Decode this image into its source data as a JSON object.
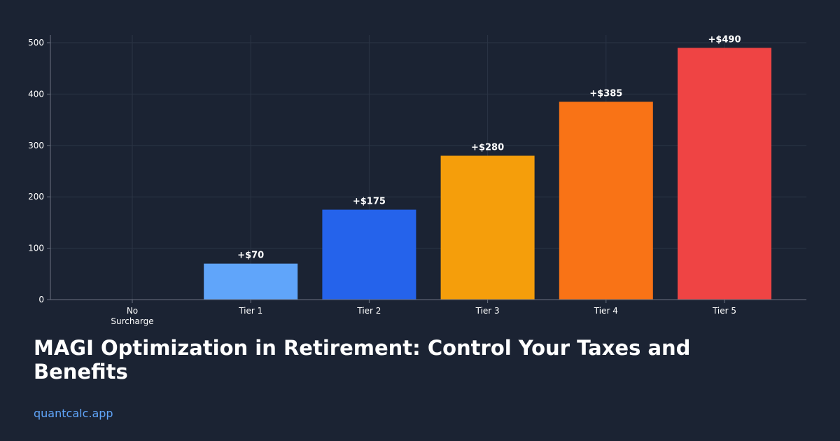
{
  "chart_data": {
    "type": "bar",
    "categories": [
      "No Surcharge",
      "Tier 1",
      "Tier 2",
      "Tier 3",
      "Tier 4",
      "Tier 5"
    ],
    "category_lines": [
      [
        "No",
        "Surcharge"
      ],
      [
        "Tier 1"
      ],
      [
        "Tier 2"
      ],
      [
        "Tier 3"
      ],
      [
        "Tier 4"
      ],
      [
        "Tier 5"
      ]
    ],
    "values": [
      0,
      70,
      175,
      280,
      385,
      490
    ],
    "data_labels": [
      "",
      "+$70",
      "+$175",
      "+$280",
      "+$385",
      "+$490"
    ],
    "bar_colors": [
      "#1b2333",
      "#60a5fa",
      "#2563eb",
      "#f59e0b",
      "#f97316",
      "#ef4444"
    ],
    "yticks": [
      0,
      100,
      200,
      300,
      400,
      500
    ],
    "ylim": [
      0,
      515
    ],
    "grid": true,
    "title": "",
    "xlabel": "",
    "ylabel": ""
  },
  "headline": "MAGI Optimization in Retirement: Control Your Taxes and Benefits",
  "site": "quantcalc.app",
  "colors": {
    "background": "#1b2333",
    "accent": "#60a5fa",
    "grid": "#2b3445",
    "axis": "#6b7280"
  }
}
